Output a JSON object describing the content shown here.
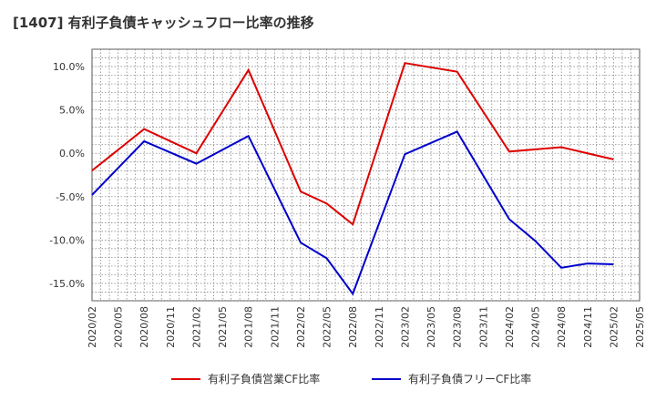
{
  "chart_data": {
    "type": "line",
    "title": "[1407]  有利子負債キャッシュフロー比率の推移",
    "x_ticks": [
      "2020/02",
      "2020/05",
      "2020/08",
      "2020/11",
      "2021/02",
      "2021/05",
      "2021/08",
      "2021/11",
      "2022/02",
      "2022/05",
      "2022/08",
      "2022/11",
      "2023/02",
      "2023/05",
      "2023/08",
      "2023/11",
      "2024/02",
      "2024/05",
      "2024/08",
      "2024/11",
      "2025/02",
      "2025/05"
    ],
    "y_ticks": [
      "10.0%",
      "5.0%",
      "0.0%",
      "-5.0%",
      "-10.0%",
      "-15.0%"
    ],
    "y_tick_values": [
      10,
      5,
      0,
      -5,
      -10,
      -15
    ],
    "ylim": [
      -17,
      12
    ],
    "grid": true,
    "legend_position": "bottom",
    "series": [
      {
        "name": "有利子負債営業CF比率",
        "color": "#dd0000",
        "x": [
          "2020/02",
          "2020/08",
          "2021/02",
          "2021/08",
          "2022/02",
          "2022/05",
          "2022/08",
          "2023/02",
          "2023/08",
          "2024/02",
          "2024/08",
          "2025/02"
        ],
        "values": [
          -2.0,
          2.8,
          0.0,
          9.6,
          -4.4,
          -5.8,
          -8.2,
          10.4,
          9.4,
          0.2,
          0.7,
          -0.7
        ]
      },
      {
        "name": "有利子負債フリーCF比率",
        "color": "#0000cc",
        "x": [
          "2020/02",
          "2020/08",
          "2021/02",
          "2021/08",
          "2022/02",
          "2022/05",
          "2022/08",
          "2023/02",
          "2023/08",
          "2024/02",
          "2024/05",
          "2024/08",
          "2024/11",
          "2025/02"
        ],
        "values": [
          -4.8,
          1.4,
          -1.2,
          2.0,
          -10.3,
          -12.1,
          -16.2,
          -0.1,
          2.5,
          -7.6,
          -10.1,
          -13.2,
          -12.7,
          -12.8
        ]
      }
    ]
  }
}
